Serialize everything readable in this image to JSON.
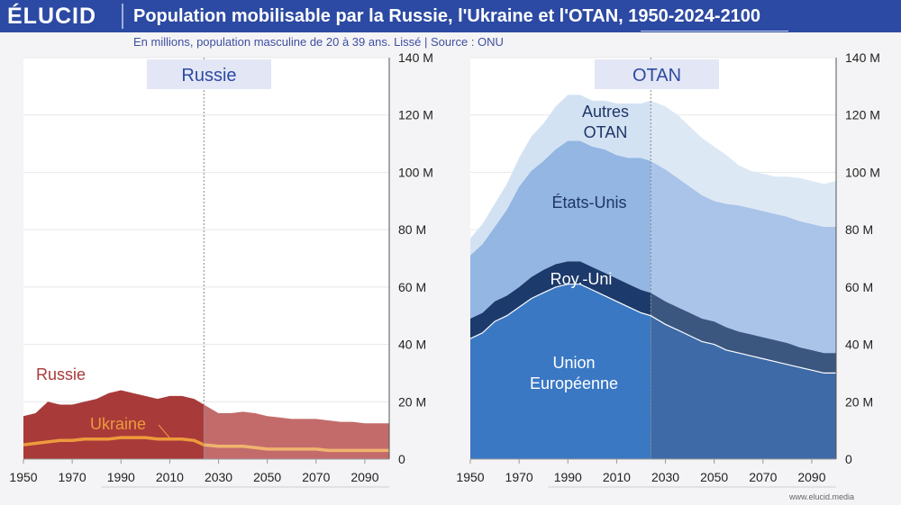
{
  "header": {
    "logo": "ÉLUCID",
    "title": "Population mobilisable par la Russie, l'Ukraine et l'OTAN, 1950-2024-2100",
    "subtitle": "En millions, population masculine de 20 à 39 ans. Lissé  |  Source : ONU"
  },
  "footer": {
    "url": "www.elucid.media"
  },
  "colors": {
    "russia": "#a83a3a",
    "russia_proj": "#c36b6b",
    "ukraine": "#ee9a3c",
    "eu": "#3a78c4",
    "uk": "#1c3a6b",
    "us": "#93b6e3",
    "other_nato": "#d3e2f3",
    "header": "#2c4aa3"
  },
  "chart_data": [
    {
      "type": "area",
      "title": "Russie",
      "x_label_years": [
        "1950",
        "1970",
        "1990",
        "2010",
        "2030",
        "2050",
        "2070",
        "2090"
      ],
      "y_tick_labels": [
        "0",
        "20 M",
        "40 M",
        "60 M",
        "80 M",
        "100 M",
        "120 M",
        "140 M"
      ],
      "ylim": [
        0,
        140
      ],
      "xlim": [
        1950,
        2100
      ],
      "projection_start": 2024,
      "x": [
        1950,
        1955,
        1960,
        1965,
        1970,
        1975,
        1980,
        1985,
        1990,
        1995,
        2000,
        2005,
        2010,
        2015,
        2020,
        2024,
        2030,
        2035,
        2040,
        2045,
        2050,
        2055,
        2060,
        2065,
        2070,
        2075,
        2080,
        2085,
        2090,
        2095,
        2100
      ],
      "series": [
        {
          "name": "Russie",
          "values": [
            15,
            16,
            20,
            19,
            19,
            20,
            21,
            23,
            24,
            23,
            22,
            21,
            22,
            22,
            21,
            19,
            16,
            16,
            16.5,
            16,
            15,
            14.5,
            14,
            14,
            14,
            13.5,
            13,
            13,
            12.5,
            12.5,
            12.5
          ]
        },
        {
          "name": "Ukraine",
          "values": [
            5,
            5.5,
            6,
            6.5,
            6.5,
            7,
            7,
            7,
            7.5,
            7.5,
            7.5,
            7,
            7,
            7,
            6.5,
            5,
            4.5,
            4.5,
            4.5,
            4,
            3.5,
            3.5,
            3.5,
            3.5,
            3.5,
            3,
            3,
            3,
            3,
            3,
            3
          ]
        }
      ],
      "labels": {
        "russia": "Russie",
        "ukraine": "Ukraine"
      }
    },
    {
      "type": "area",
      "title": "OTAN",
      "stacked": true,
      "x_label_years": [
        "1950",
        "1970",
        "1990",
        "2010",
        "2030",
        "2050",
        "2070",
        "2090"
      ],
      "y_tick_labels": [
        "0",
        "20 M",
        "40 M",
        "60 M",
        "80 M",
        "100 M",
        "120 M",
        "140 M"
      ],
      "ylim": [
        0,
        140
      ],
      "xlim": [
        1950,
        2100
      ],
      "projection_start": 2024,
      "x": [
        1950,
        1955,
        1960,
        1965,
        1970,
        1975,
        1980,
        1985,
        1990,
        1995,
        2000,
        2005,
        2010,
        2015,
        2020,
        2024,
        2030,
        2035,
        2040,
        2045,
        2050,
        2055,
        2060,
        2065,
        2070,
        2075,
        2080,
        2085,
        2090,
        2095,
        2100
      ],
      "series": [
        {
          "name": "Union Européenne",
          "values": [
            42,
            44,
            48,
            50,
            53,
            56,
            58,
            60,
            61,
            61,
            59,
            57,
            55,
            53,
            51,
            50,
            47,
            45,
            43,
            41,
            40,
            38,
            37,
            36,
            35,
            34,
            33,
            32,
            31,
            30,
            30
          ]
        },
        {
          "name": "Roy.-Uni",
          "values": [
            7,
            7,
            7,
            7,
            7,
            7.5,
            8,
            8,
            8,
            8,
            8,
            8,
            8,
            8,
            8,
            8,
            8,
            8,
            8,
            8,
            8,
            8,
            7.5,
            7.5,
            7.5,
            7.5,
            7.5,
            7,
            7,
            7,
            7
          ]
        },
        {
          "name": "États-Unis",
          "values": [
            22,
            24,
            26,
            30,
            35,
            37,
            38,
            40,
            42,
            42,
            42,
            43,
            43,
            44,
            46,
            46,
            46,
            45,
            44,
            43,
            42,
            43,
            44,
            44,
            44,
            44,
            44,
            44,
            44,
            44,
            44
          ]
        },
        {
          "name": "Autres OTAN",
          "values": [
            6,
            7,
            8,
            9,
            10,
            12,
            13,
            15,
            16,
            16,
            16,
            17,
            18,
            19,
            19,
            21,
            22,
            22,
            21,
            20,
            19,
            17,
            14,
            13,
            13,
            13,
            14,
            15,
            15,
            15,
            16
          ]
        }
      ],
      "labels": {
        "other1": "Autres",
        "other2": "OTAN",
        "us": "États-Unis",
        "uk": "Roy.-Uni",
        "eu1": "Union",
        "eu2": "Européenne"
      }
    }
  ]
}
